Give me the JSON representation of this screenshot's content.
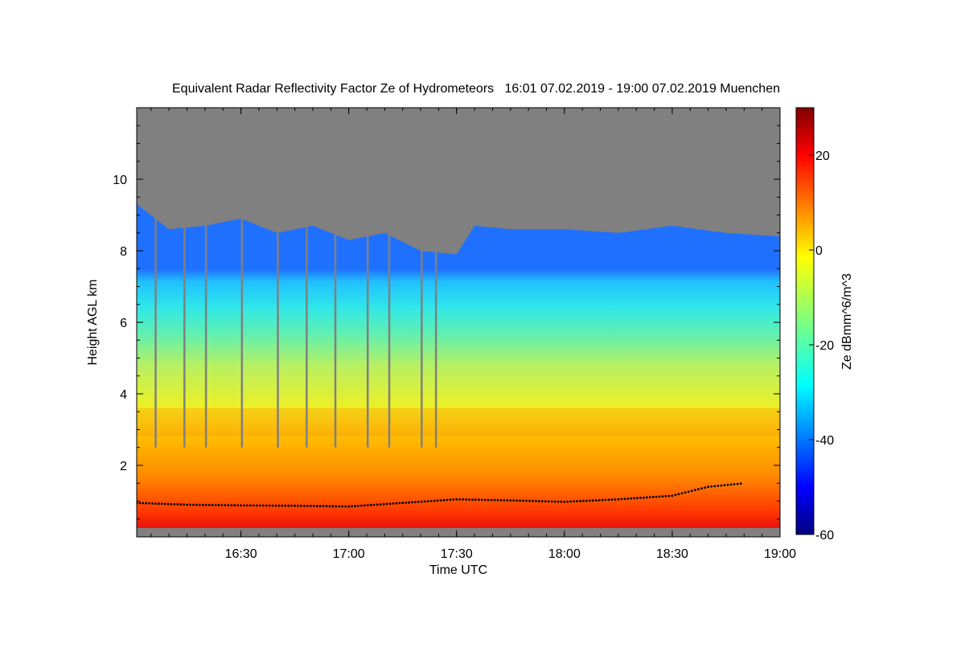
{
  "chart_data": {
    "type": "heatmap",
    "title": "Equivalent Radar Reflectivity Factor Ze of Hydrometeors   16:01 07.02.2019 - 19:00 07.02.2019 Muenchen",
    "xlabel": "Time UTC",
    "ylabel": "Height AGL km",
    "xlim": [
      "16:01",
      "19:00"
    ],
    "ylim": [
      0,
      12
    ],
    "x_ticks": [
      "16:30",
      "17:00",
      "17:30",
      "18:00",
      "18:30",
      "19:00"
    ],
    "y_ticks": [
      2,
      4,
      6,
      8,
      10
    ],
    "colorbar": {
      "label": "Ze dBmm^6/m^3",
      "range": [
        -60,
        30
      ],
      "ticks": [
        20,
        0,
        -20,
        -40,
        -60
      ],
      "colormap": "jet"
    },
    "colors": {
      "no_signal": "#808080",
      "markers": "#000000"
    },
    "layers": {
      "echo_top_km": [
        [
          "16:01",
          9.3
        ],
        [
          "16:10",
          8.6
        ],
        [
          "16:20",
          8.7
        ],
        [
          "16:30",
          8.9
        ],
        [
          "16:40",
          8.5
        ],
        [
          "16:50",
          8.7
        ],
        [
          "17:00",
          8.3
        ],
        [
          "17:10",
          8.5
        ],
        [
          "17:20",
          8.0
        ],
        [
          "17:30",
          7.9
        ],
        [
          "17:35",
          8.7
        ],
        [
          "17:45",
          8.6
        ],
        [
          "18:00",
          8.6
        ],
        [
          "18:15",
          8.5
        ],
        [
          "18:30",
          8.7
        ],
        [
          "18:45",
          8.5
        ],
        [
          "19:00",
          8.4
        ]
      ],
      "bright_band_km": [
        2.8,
        3.6
      ],
      "ceilometer_cloud_base_km": [
        [
          "16:01",
          0.95
        ],
        [
          "16:15",
          0.9
        ],
        [
          "16:30",
          0.88
        ],
        [
          "16:45",
          0.87
        ],
        [
          "17:00",
          0.85
        ],
        [
          "17:15",
          0.95
        ],
        [
          "17:30",
          1.05
        ],
        [
          "17:45",
          1.02
        ],
        [
          "18:00",
          0.98
        ],
        [
          "18:15",
          1.05
        ],
        [
          "18:30",
          1.15
        ],
        [
          "18:40",
          1.4
        ],
        [
          "18:50",
          1.5
        ]
      ]
    }
  }
}
